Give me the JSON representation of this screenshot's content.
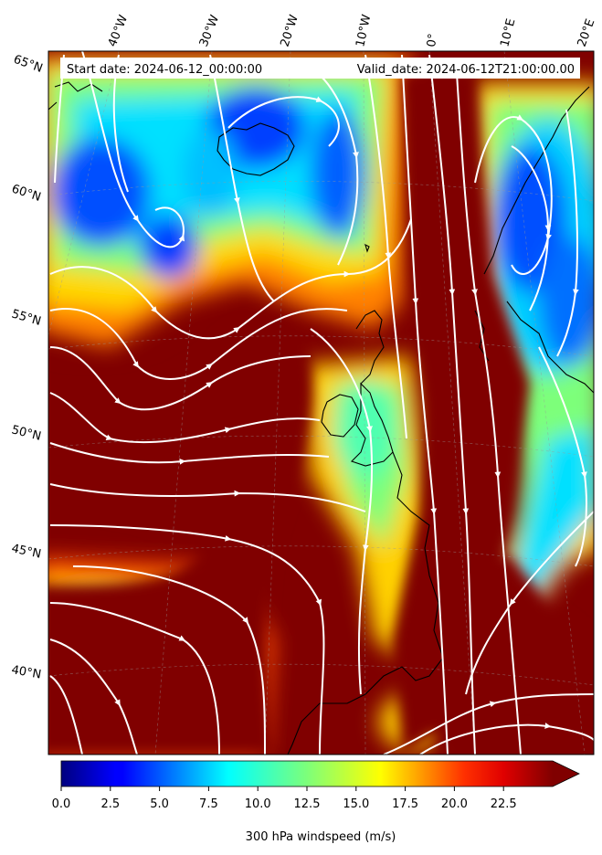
{
  "header": {
    "start_date": "Start date: 2024-06-12_00:00:00",
    "valid_date": "Valid_date: 2024-06-12T21:00:00.00"
  },
  "longitude_labels": [
    "40°W",
    "30°W",
    "20°W",
    "10°W",
    "0°",
    "10°E",
    "20°E"
  ],
  "latitude_labels": [
    "65°N",
    "60°N",
    "55°N",
    "50°N",
    "45°N",
    "40°N"
  ],
  "colorbar": {
    "title": "300 hPa windspeed (m/s)",
    "min": 0,
    "max": 25,
    "tick_labels": [
      "0.0",
      "2.5",
      "5.0",
      "7.5",
      "10.0",
      "12.5",
      "15.0",
      "17.5",
      "20.0",
      "22.5"
    ],
    "colormap": "jet",
    "extend": "max"
  },
  "colors": {
    "streamline": "#ffffff",
    "coastline": "#000000",
    "jet_core": "#800000"
  }
}
